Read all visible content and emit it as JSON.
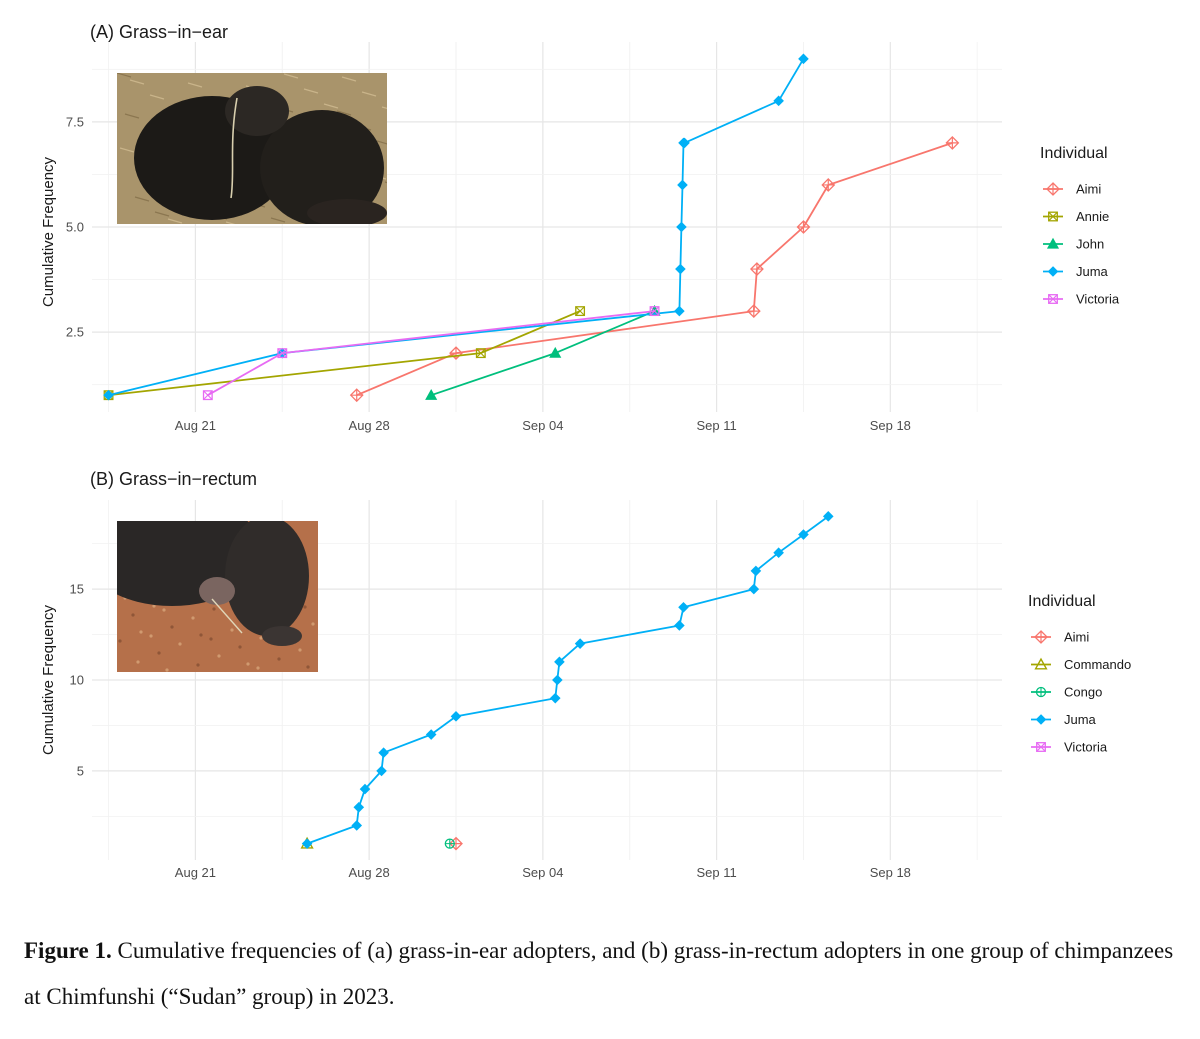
{
  "chart_data": [
    {
      "type": "line",
      "title": "(A) Grass−in−ear",
      "ylabel": "Cumulative Frequency",
      "xlabel": "",
      "x_type": "date",
      "x_ticks": [
        "2023-08-21",
        "2023-08-28",
        "2023-09-04",
        "2023-09-11",
        "2023-09-18"
      ],
      "x_tick_labels": [
        "Aug 21",
        "Aug 28",
        "Sep 04",
        "Sep 11",
        "Sep 18"
      ],
      "xlim": [
        "2023-08-16T20:00",
        "2023-09-22T12:00"
      ],
      "y_ticks": [
        2.5,
        5.0,
        7.5
      ],
      "y_tick_labels": [
        "2.5",
        "5.0",
        "7.5"
      ],
      "ylim": [
        0.6,
        9.4
      ],
      "grid": true,
      "legend_title": "Individual",
      "legend_position": "right",
      "photo": "chimpanzee with grass stem in ear",
      "series": [
        {
          "name": "Aimi",
          "color": "#F8766D",
          "marker": "diamond-plus",
          "x": [
            "2023-08-27T12:00",
            "2023-08-31T12:00",
            "2023-09-12T12:00",
            "2023-09-12T15:00",
            "2023-09-14T12:00",
            "2023-09-15T12:00",
            "2023-09-20T12:00"
          ],
          "y": [
            1,
            2,
            3,
            4,
            5,
            6,
            7
          ]
        },
        {
          "name": "Annie",
          "color": "#A3A500",
          "marker": "square-x",
          "x": [
            "2023-08-17T12:00",
            "2023-09-01T12:00",
            "2023-09-05T12:00"
          ],
          "y": [
            1,
            2,
            3
          ]
        },
        {
          "name": "John",
          "color": "#00BF7D",
          "marker": "triangle",
          "x": [
            "2023-08-30T12:00",
            "2023-09-04T12:00",
            "2023-09-08T12:00"
          ],
          "y": [
            1,
            2,
            3
          ]
        },
        {
          "name": "Juma",
          "color": "#00B0F6",
          "marker": "diamond",
          "x": [
            "2023-08-17T12:00",
            "2023-08-24T12:00",
            "2023-09-09T12:00",
            "2023-09-09T13:00",
            "2023-09-09T14:00",
            "2023-09-09T15:00",
            "2023-09-09T16:00",
            "2023-09-09T17:00",
            "2023-09-13T12:00",
            "2023-09-14T12:00"
          ],
          "y": [
            1,
            2,
            3,
            4,
            5,
            6,
            7,
            7,
            8,
            9
          ]
        },
        {
          "name": "Victoria",
          "color": "#E76BF3",
          "marker": "square-x",
          "x": [
            "2023-08-21T12:00",
            "2023-08-24T12:00",
            "2023-09-08T12:00"
          ],
          "y": [
            1,
            2,
            3
          ]
        }
      ]
    },
    {
      "type": "line",
      "title": "(B) Grass−in−rectum",
      "ylabel": "Cumulative Frequency",
      "xlabel": "",
      "x_type": "date",
      "x_ticks": [
        "2023-08-21",
        "2023-08-28",
        "2023-09-04",
        "2023-09-11",
        "2023-09-18"
      ],
      "x_tick_labels": [
        "Aug 21",
        "Aug 28",
        "Sep 04",
        "Sep 11",
        "Sep 18"
      ],
      "xlim": [
        "2023-08-16T20:00",
        "2023-09-22T12:00"
      ],
      "y_ticks": [
        5,
        10,
        15
      ],
      "y_tick_labels": [
        "5",
        "10",
        "15"
      ],
      "ylim": [
        0.1,
        19.9
      ],
      "grid": true,
      "legend_title": "Individual",
      "legend_position": "right",
      "photo": "chimpanzee with grass stem in rectum",
      "series": [
        {
          "name": "Aimi",
          "color": "#F8766D",
          "marker": "diamond-plus",
          "x": [
            "2023-08-31T12:00"
          ],
          "y": [
            1
          ]
        },
        {
          "name": "Commando",
          "color": "#A3A500",
          "marker": "triangle-open",
          "x": [
            "2023-08-25T12:00"
          ],
          "y": [
            1
          ]
        },
        {
          "name": "Congo",
          "color": "#00BF7D",
          "marker": "circle-plus",
          "x": [
            "2023-08-31T06:00"
          ],
          "y": [
            1
          ]
        },
        {
          "name": "Juma",
          "color": "#00B0F6",
          "marker": "diamond",
          "x": [
            "2023-08-25T12:00",
            "2023-08-27T12:00",
            "2023-08-27T14:00",
            "2023-08-27T20:00",
            "2023-08-28T12:00",
            "2023-08-28T14:00",
            "2023-08-30T12:00",
            "2023-08-31T12:00",
            "2023-09-04T12:00",
            "2023-09-04T14:00",
            "2023-09-04T16:00",
            "2023-09-05T12:00",
            "2023-09-09T12:00",
            "2023-09-09T16:00",
            "2023-09-12T12:00",
            "2023-09-12T14:00",
            "2023-09-13T12:00",
            "2023-09-14T12:00",
            "2023-09-15T12:00"
          ],
          "y": [
            1,
            2,
            3,
            4,
            5,
            6,
            7,
            8,
            9,
            10,
            11,
            12,
            13,
            14,
            15,
            16,
            17,
            18,
            19
          ]
        },
        {
          "name": "Victoria",
          "color": "#E76BF3",
          "marker": "square-x",
          "x": [],
          "y": []
        }
      ]
    }
  ],
  "caption": {
    "label": "Figure 1.",
    "text": " Cumulative frequencies of (a) grass-in-ear adopters, and (b) grass-in-rectum adopters in one group of chimpanzees at Chimfunshi (“Sudan” group) in 2023."
  }
}
